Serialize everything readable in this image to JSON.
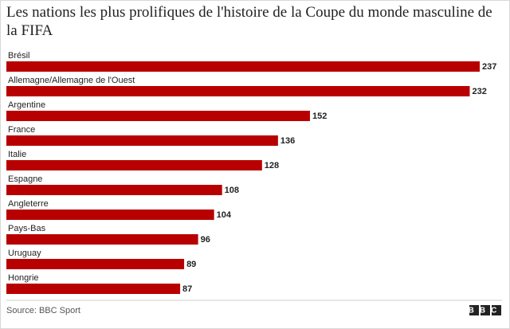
{
  "chart_data": {
    "type": "bar",
    "orientation": "horizontal",
    "title": "Les nations les plus prolifiques de l'histoire de la Coupe du monde masculine de la FIFA",
    "categories": [
      "Brésil",
      "Allemagne/Allemagne de l'Ouest",
      "Argentine",
      "France",
      "Italie",
      "Espagne",
      "Angleterre",
      "Pays-Bas",
      "Uruguay",
      "Hongrie"
    ],
    "values": [
      237,
      232,
      152,
      136,
      128,
      108,
      104,
      96,
      89,
      87
    ],
    "color": "#b80000",
    "source": "Source: BBC Sport",
    "logo": "BBC"
  }
}
